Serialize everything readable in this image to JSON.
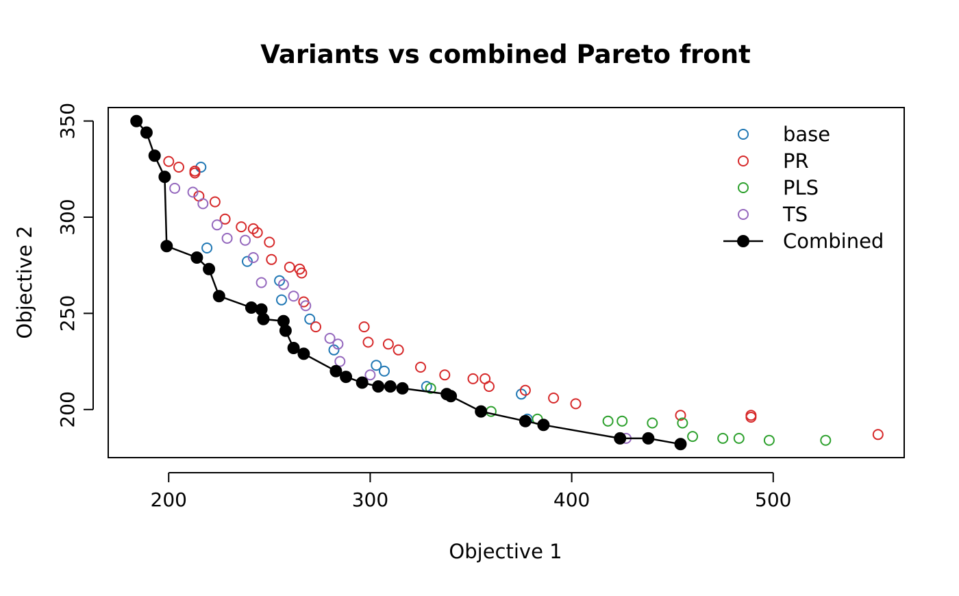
{
  "chart_data": {
    "type": "scatter",
    "title": "Variants vs combined Pareto front",
    "xlabel": "Objective 1",
    "ylabel": "Objective 2",
    "xlim": [
      170,
      565
    ],
    "ylim": [
      175,
      357
    ],
    "xticks": [
      200,
      300,
      400,
      500
    ],
    "yticks": [
      200,
      250,
      300,
      350
    ],
    "grid": false,
    "legend_position": "top-right",
    "colors": {
      "base": "#1f77b4",
      "PR": "#d62728",
      "PLS": "#2ca02c",
      "TS": "#9467bd",
      "Combined": "#000000"
    },
    "series": [
      {
        "name": "base",
        "marker": "open-circle",
        "points": [
          [
            216,
            326
          ],
          [
            219,
            284
          ],
          [
            239,
            277
          ],
          [
            255,
            267
          ],
          [
            256,
            257
          ],
          [
            270,
            247
          ],
          [
            282,
            231
          ],
          [
            303,
            223
          ],
          [
            307,
            220
          ],
          [
            328,
            212
          ],
          [
            375,
            208
          ],
          [
            378,
            195
          ]
        ]
      },
      {
        "name": "PR",
        "marker": "open-circle",
        "points": [
          [
            200,
            329
          ],
          [
            205,
            326
          ],
          [
            213,
            324
          ],
          [
            213,
            323
          ],
          [
            215,
            311
          ],
          [
            223,
            308
          ],
          [
            228,
            299
          ],
          [
            236,
            295
          ],
          [
            242,
            294
          ],
          [
            244,
            292
          ],
          [
            250,
            287
          ],
          [
            251,
            278
          ],
          [
            260,
            274
          ],
          [
            265,
            273
          ],
          [
            266,
            271
          ],
          [
            267,
            256
          ],
          [
            273,
            243
          ],
          [
            297,
            243
          ],
          [
            299,
            235
          ],
          [
            309,
            234
          ],
          [
            314,
            231
          ],
          [
            325,
            222
          ],
          [
            337,
            218
          ],
          [
            351,
            216
          ],
          [
            357,
            216
          ],
          [
            359,
            212
          ],
          [
            377,
            210
          ],
          [
            391,
            206
          ],
          [
            402,
            203
          ],
          [
            454,
            197
          ],
          [
            489,
            197
          ],
          [
            489,
            196
          ],
          [
            552,
            187
          ]
        ]
      },
      {
        "name": "PLS",
        "marker": "open-circle",
        "points": [
          [
            330,
            211
          ],
          [
            360,
            199
          ],
          [
            383,
            195
          ],
          [
            418,
            194
          ],
          [
            425,
            194
          ],
          [
            440,
            193
          ],
          [
            455,
            193
          ],
          [
            460,
            186
          ],
          [
            475,
            185
          ],
          [
            483,
            185
          ],
          [
            498,
            184
          ],
          [
            526,
            184
          ]
        ]
      },
      {
        "name": "TS",
        "marker": "open-circle",
        "points": [
          [
            203,
            315
          ],
          [
            212,
            313
          ],
          [
            217,
            307
          ],
          [
            224,
            296
          ],
          [
            229,
            289
          ],
          [
            238,
            288
          ],
          [
            242,
            279
          ],
          [
            246,
            266
          ],
          [
            257,
            265
          ],
          [
            262,
            259
          ],
          [
            268,
            254
          ],
          [
            280,
            237
          ],
          [
            284,
            234
          ],
          [
            285,
            225
          ],
          [
            300,
            218
          ],
          [
            427,
            185
          ]
        ]
      },
      {
        "name": "Combined",
        "marker": "filled-circle",
        "line": true,
        "points": [
          [
            184,
            350
          ],
          [
            189,
            344
          ],
          [
            193,
            332
          ],
          [
            198,
            321
          ],
          [
            199,
            285
          ],
          [
            214,
            279
          ],
          [
            220,
            273
          ],
          [
            225,
            259
          ],
          [
            241,
            253
          ],
          [
            246,
            252
          ],
          [
            247,
            247
          ],
          [
            257,
            246
          ],
          [
            258,
            241
          ],
          [
            262,
            232
          ],
          [
            267,
            229
          ],
          [
            283,
            220
          ],
          [
            288,
            217
          ],
          [
            296,
            214
          ],
          [
            304,
            212
          ],
          [
            310,
            212
          ],
          [
            316,
            211
          ],
          [
            338,
            208
          ],
          [
            340,
            207
          ],
          [
            355,
            199
          ],
          [
            377,
            194
          ],
          [
            386,
            192
          ],
          [
            424,
            185
          ],
          [
            438,
            185
          ],
          [
            454,
            182
          ]
        ]
      }
    ]
  }
}
